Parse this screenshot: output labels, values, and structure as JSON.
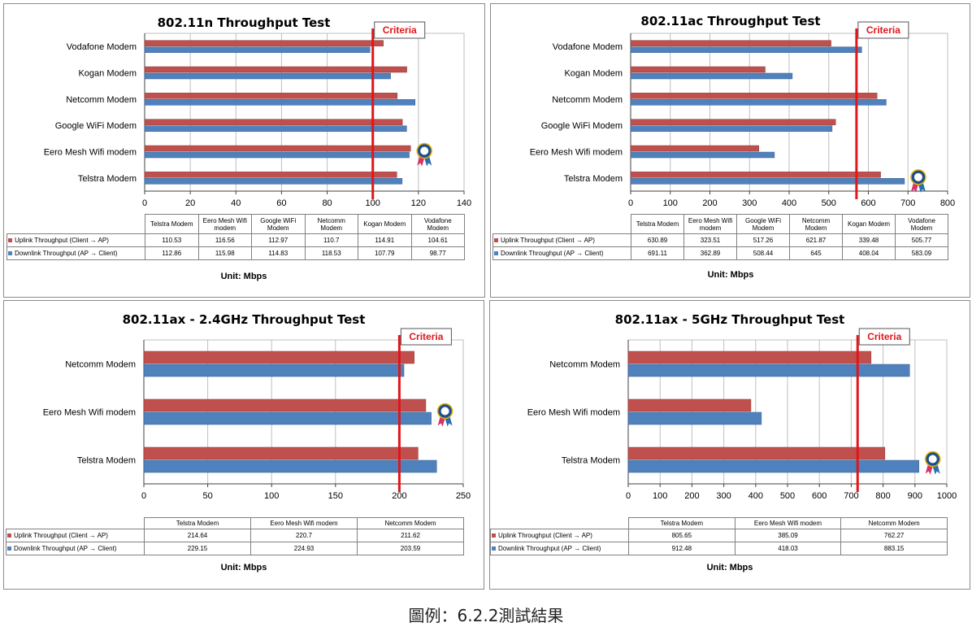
{
  "caption": "圖例：6.2.2測試結果",
  "colors": {
    "uplink": "#c0504d",
    "downlink": "#4f81bd",
    "criteria": "#e0161b"
  },
  "icons": [
    "award-badge-icon"
  ],
  "chart_data": [
    {
      "type": "bar",
      "orientation": "horizontal",
      "title": "802.11n Throughput Test",
      "categories": [
        "Telstra Modem",
        "Eero Mesh Wifi modem",
        "Google WiFi Modem",
        "Netcomm Modem",
        "Kogan Modem",
        "Vodafone Modem"
      ],
      "table_headers": [
        "Telstra Modem",
        "Eero Mesh Wifi modem",
        "Google WiFi Modem",
        "Netcomm Modem",
        "Kogan Modem",
        "Vodafone Modem"
      ],
      "series": [
        {
          "name": "Uplink Throughput (Client → AP)",
          "values": [
            110.53,
            116.56,
            112.97,
            110.7,
            114.91,
            104.61
          ],
          "display": [
            "110.53",
            "116.56",
            "112.97",
            "110.7",
            "114.91",
            "104.61"
          ]
        },
        {
          "name": "Downlink Throughput (AP → Client)",
          "values": [
            112.86,
            115.98,
            114.83,
            118.53,
            107.79,
            98.77
          ],
          "display": [
            "112.86",
            "115.98",
            "114.83",
            "118.53",
            "107.79",
            "98.77"
          ]
        }
      ],
      "xlim": [
        0,
        140
      ],
      "xticks": [
        0,
        20,
        40,
        60,
        80,
        100,
        120,
        140
      ],
      "criteria": {
        "label": "Criteria",
        "value": 100
      },
      "winner_index": 1,
      "unit": "Unit: Mbps",
      "grid": true
    },
    {
      "type": "bar",
      "orientation": "horizontal",
      "title": "802.11ac Throughput Test",
      "categories": [
        "Telstra Modem",
        "Eero Mesh Wifi modem",
        "Google WiFi Modem",
        "Netcomm Modem",
        "Kogan Modem",
        "Vodafone Modem"
      ],
      "table_headers": [
        "Telstra Modem",
        "Eero Mesh Wifi modem",
        "Google WiFi Modem",
        "Netcomm Modem",
        "Kogan Modem",
        "Vodafone Modem"
      ],
      "series": [
        {
          "name": "Uplink Throughput (Client → AP)",
          "values": [
            630.89,
            323.51,
            517.26,
            621.87,
            339.48,
            505.77
          ],
          "display": [
            "630.89",
            "323.51",
            "517.26",
            "621.87",
            "339.48",
            "505.77"
          ]
        },
        {
          "name": "Downlink Throughput (AP → Client)",
          "values": [
            691.11,
            362.89,
            508.44,
            645,
            408.04,
            583.09
          ],
          "display": [
            "691.11",
            "362.89",
            "508.44",
            "645",
            "408.04",
            "583.09"
          ]
        }
      ],
      "xlim": [
        0,
        800
      ],
      "xticks": [
        0,
        100,
        200,
        300,
        400,
        500,
        600,
        700,
        800
      ],
      "criteria": {
        "label": "Criteria",
        "value": 570
      },
      "winner_index": 0,
      "unit": "Unit: Mbps",
      "grid": true
    },
    {
      "type": "bar",
      "orientation": "horizontal",
      "title": "802.11ax - 2.4GHz Throughput Test",
      "categories": [
        "Telstra Modem",
        "Eero Mesh Wifi modem",
        "Netcomm Modem"
      ],
      "table_headers": [
        "Telstra Modem",
        "Eero Mesh Wifi modem",
        "Netcomm Modem"
      ],
      "series": [
        {
          "name": "Uplink Throughput (Client → AP)",
          "values": [
            214.64,
            220.7,
            211.62
          ],
          "display": [
            "214.64",
            "220.7",
            "211.62"
          ]
        },
        {
          "name": "Downlink Throughput (AP → Client)",
          "values": [
            229.15,
            224.93,
            203.59
          ],
          "display": [
            "229.15",
            "224.93",
            "203.59"
          ]
        }
      ],
      "xlim": [
        0,
        250
      ],
      "xticks": [
        0,
        50,
        100,
        150,
        200,
        250
      ],
      "criteria": {
        "label": "Criteria",
        "value": 200
      },
      "winner_index": 1,
      "unit": "Unit: Mbps",
      "grid": true
    },
    {
      "type": "bar",
      "orientation": "horizontal",
      "title": "802.11ax - 5GHz Throughput Test",
      "categories": [
        "Telstra Modem",
        "Eero Mesh Wifi modem",
        "Netcomm Modem"
      ],
      "table_headers": [
        "Telstra Modem",
        "Eero Mesh Wifi modem",
        "Netcomm Modem"
      ],
      "series": [
        {
          "name": "Uplink Throughput (Client → AP)",
          "values": [
            805.65,
            385.09,
            762.27
          ],
          "display": [
            "805.65",
            "385.09",
            "762.27"
          ]
        },
        {
          "name": "Downlink Throughput (AP → Client)",
          "values": [
            912.48,
            418.03,
            883.15
          ],
          "display": [
            "912.48",
            "418.03",
            "883.15"
          ]
        }
      ],
      "xlim": [
        0,
        1000
      ],
      "xticks": [
        0,
        100,
        200,
        300,
        400,
        500,
        600,
        700,
        800,
        900,
        1000
      ],
      "criteria": {
        "label": "Criteria",
        "value": 720
      },
      "winner_index": 0,
      "unit": "Unit: Mbps",
      "grid": true
    }
  ]
}
